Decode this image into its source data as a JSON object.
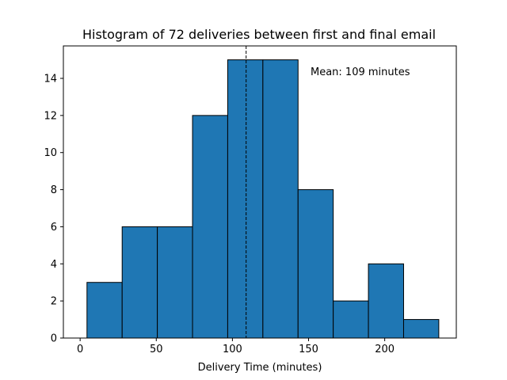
{
  "chart_data": {
    "type": "bar",
    "title": "Histogram of 72 deliveries between first and final email",
    "xlabel": "Delivery Time (minutes)",
    "ylabel": "",
    "bin_edges": [
      4.5,
      27.6,
      50.7,
      73.8,
      96.9,
      120.0,
      143.1,
      166.2,
      189.3,
      212.4,
      235.5
    ],
    "values": [
      3,
      6,
      6,
      12,
      15,
      15,
      8,
      2,
      4,
      1
    ],
    "xlim": [
      -11,
      247
    ],
    "ylim": [
      0,
      15.75
    ],
    "xticks": [
      0,
      50,
      100,
      150,
      200
    ],
    "yticks": [
      0,
      2,
      4,
      6,
      8,
      10,
      12,
      14
    ],
    "mean_line": 109,
    "annotation": "Mean: 109 minutes",
    "grid": false,
    "colors": {
      "bar_fill": "#1f77b4",
      "bar_edge": "#000000",
      "mean_line": "#000000"
    }
  }
}
